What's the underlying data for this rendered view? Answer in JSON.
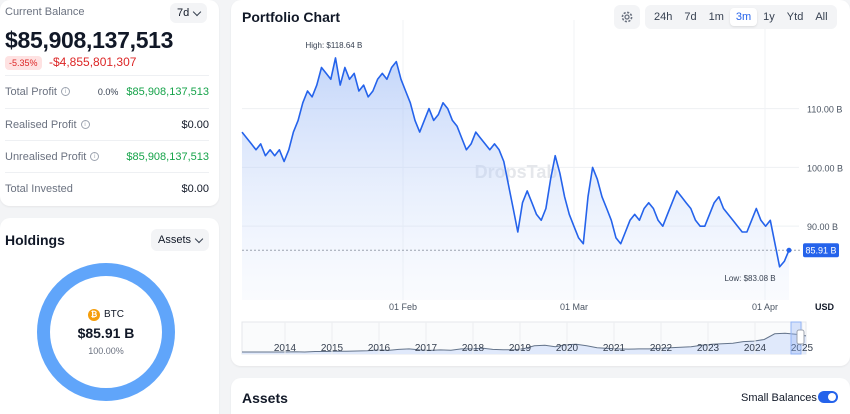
{
  "balance": {
    "label": "Current Balance",
    "period": "7d",
    "value": "$85,908,137,513",
    "change_pct": "-5.35%",
    "change_value": "-$4,855,801,307",
    "rows": [
      {
        "label": "Total Profit",
        "pct": "0.0%",
        "value": "$85,908,137,513",
        "positive": true
      },
      {
        "label": "Realised Profit",
        "value": "$0.00"
      },
      {
        "label": "Unrealised Profit",
        "value": "$85,908,137,513",
        "positive": true
      },
      {
        "label": "Total Invested",
        "value": "$0.00"
      }
    ]
  },
  "holdings": {
    "title": "Holdings",
    "dropdown": "Assets",
    "asset_symbol": "BTC",
    "asset_value": "$85.91 B",
    "asset_pct": "100.00%",
    "ring_color": "#60a5fa"
  },
  "portfolio_chart": {
    "title": "Portfolio Chart",
    "ranges": [
      "24h",
      "7d",
      "1m",
      "3m",
      "1y",
      "Ytd",
      "All"
    ],
    "active_range": "3m",
    "settings_icon": "gear-icon"
  },
  "chart_data": {
    "type": "area",
    "y_unit": "USD",
    "y_ticks": [
      "110.00 B",
      "100.00 B",
      "90.00 B"
    ],
    "y_tick_values": [
      110,
      100,
      90
    ],
    "ylim": [
      80.5,
      121
    ],
    "x_ticks": [
      "01 Feb",
      "01 Mar",
      "01 Apr"
    ],
    "high_label": "High: $118.64 B",
    "low_label": "Low: $83.08 B",
    "current_label": "85.91 B",
    "watermark": "DropsTab",
    "line_color": "#2563eb",
    "series": [
      {
        "values": [
          106,
          105,
          104,
          103,
          104,
          102,
          103,
          102,
          103,
          101,
          103,
          106,
          108,
          111,
          113,
          112,
          114,
          117,
          116,
          115,
          118.64,
          114,
          117,
          115,
          116,
          113,
          114,
          112,
          113,
          115,
          116,
          115,
          117,
          118,
          115,
          113,
          111,
          108,
          106,
          108,
          110,
          108,
          109,
          111,
          110,
          108,
          107,
          105,
          103,
          104,
          106,
          105,
          104,
          103,
          104,
          103,
          101,
          97,
          93,
          89,
          94,
          96,
          94,
          92,
          91,
          93,
          98,
          102,
          99,
          95,
          92,
          90,
          88,
          87,
          95,
          100,
          98,
          95,
          93,
          91,
          88,
          87,
          89,
          91,
          92,
          91,
          93,
          94,
          93,
          91,
          90,
          92,
          94,
          96,
          95,
          94,
          93,
          91,
          90,
          90,
          92,
          94,
          95,
          93,
          92,
          91,
          90,
          89,
          89,
          91,
          93,
          91,
          90,
          91,
          87,
          83.08,
          84,
          85.91
        ]
      }
    ],
    "overview": {
      "type": "line",
      "years": [
        "2014",
        "2015",
        "2016",
        "2017",
        "2018",
        "2019",
        "2020",
        "2021",
        "2022",
        "2023",
        "2024",
        "2025"
      ],
      "values": [
        0,
        0,
        0,
        0,
        0,
        0.01,
        0,
        0.02,
        0.02,
        0.03,
        0.03,
        0.04,
        0.05,
        0.08,
        0.06,
        0.1,
        0.12,
        0.08,
        0.06,
        0.08,
        0.07,
        0.12,
        0.12,
        0.15,
        0.1,
        0.09,
        0.08,
        0.13,
        0.24,
        0.26,
        0.2,
        0.28,
        0.3,
        0.24,
        0.16,
        0.14,
        0.12,
        0.11,
        0.12,
        0.12,
        0.14,
        0.16,
        0.18,
        0.2,
        0.26,
        0.3,
        0.32,
        0.34,
        0.4,
        0.42,
        0.48,
        0.7,
        0.72,
        0.68,
        0.62
      ]
    }
  },
  "assets": {
    "title": "Assets",
    "small_balances_label": "Small Balances",
    "small_balances_on": true
  }
}
